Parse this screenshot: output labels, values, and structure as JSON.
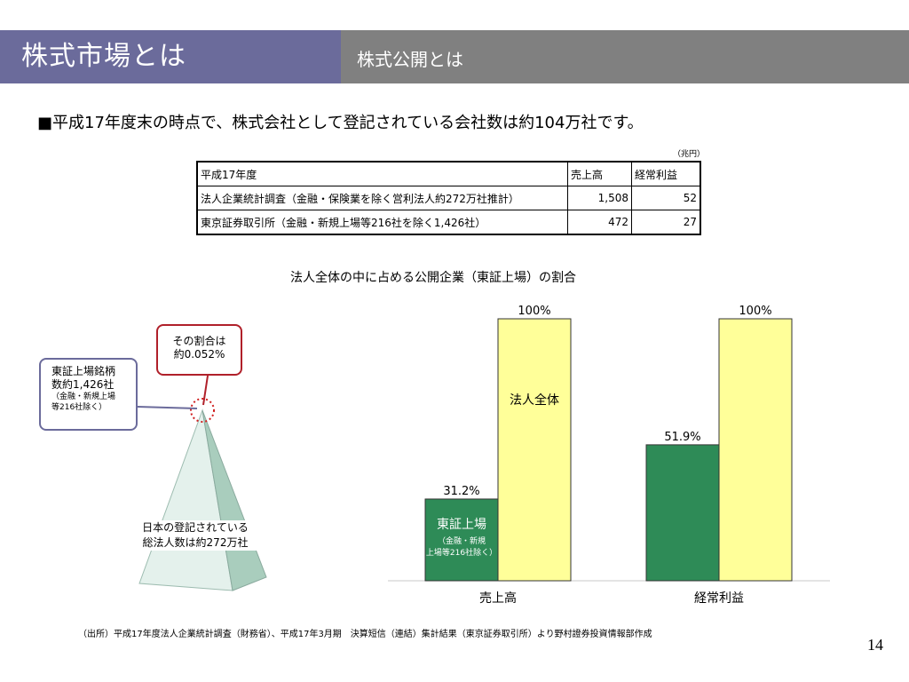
{
  "header": {
    "title": "株式市場とは",
    "subtitle": "株式公開とは"
  },
  "lead": "■平成17年度末の時点で、株式会社として登記されている会社数は約104万社です。",
  "table": {
    "unit": "（兆円）",
    "header": [
      "平成17年度",
      "売上高",
      "経常利益"
    ],
    "rows": [
      [
        "法人企業統計調査（金融・保険業を除く営利法人約272万社推計）",
        "1,508",
        "52"
      ],
      [
        "東京証券取引所（金融・新規上場等216社を除く1,426社）",
        "472",
        "27"
      ]
    ]
  },
  "diagram": {
    "ratio_callout": [
      "その割合は",
      "約0.052%"
    ],
    "tse_callout": [
      "東証上場銘柄",
      "数約1,426社",
      "（金融・新規上場",
      "等216社除く）"
    ],
    "pyramid_label": [
      "日本の登記されている",
      "総法人数は約272万社"
    ]
  },
  "chart_data": {
    "type": "bar",
    "title": "法人全体の中に占める公開企業（東証上場）の割合",
    "categories": [
      "売上高",
      "経常利益"
    ],
    "ylim": [
      0,
      100
    ],
    "grid": false,
    "series": [
      {
        "name": "東証上場",
        "sublabel": [
          "（金融・新規",
          "上場等216社除く）"
        ],
        "values": [
          31.2,
          51.9
        ],
        "value_labels": [
          "31.2%",
          "51.9%"
        ],
        "color": "#2e8b57"
      },
      {
        "name": "法人全体",
        "values": [
          100,
          100
        ],
        "value_labels": [
          "100%",
          "100%"
        ],
        "color": "#ffff99"
      }
    ]
  },
  "footer": {
    "source": "（出所）平成17年度法人企業統計調査（財務省）、平成17年3月期　決算短信（連結）集計結果（東京証券取引所）より野村證券投資情報部作成",
    "page": "14"
  }
}
